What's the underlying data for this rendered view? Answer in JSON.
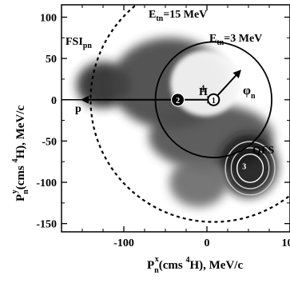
{
  "chart_data": {
    "type": "heatmap",
    "title": "",
    "xlabel": {
      "main": "P",
      "sub": "n",
      "sup": "x",
      "rest": "(cms ",
      "sup2": "4",
      "rest2": "H), MeV/c"
    },
    "ylabel": {
      "main": "P",
      "sub": "n",
      "sup": "y",
      "rest": "(cms ",
      "sup2": "4",
      "rest2": "H), MeV/c"
    },
    "xlim": [
      -175,
      100
    ],
    "ylim": [
      -160,
      115
    ],
    "xticks": [
      -100,
      0,
      100
    ],
    "xtick_labels": [
      "-100",
      "0",
      "100"
    ],
    "yticks": [
      100,
      50,
      0,
      -50,
      -100,
      -150
    ],
    "ytick_labels": [
      "100",
      "50",
      "0",
      "-50",
      "-100",
      "-150"
    ],
    "colors": {
      "density_dark": "#0a0a0a",
      "density_mid": "#4a4a4a",
      "density_light": "#9a9a9a",
      "background": "#ffffff"
    },
    "density_regions": [
      {
        "name": "FSI region",
        "cx": -125,
        "cy": 18,
        "rx": 32,
        "ry": 28,
        "level": 0.85
      },
      {
        "name": "central band",
        "cx": -45,
        "cy": 20,
        "rx": 70,
        "ry": 55,
        "level": 0.7
      },
      {
        "name": "lower band",
        "cx": 5,
        "cy": -45,
        "rx": 75,
        "ry": 40,
        "level": 0.65
      },
      {
        "name": "QFS core",
        "cx": 50,
        "cy": -80,
        "rx": 35,
        "ry": 38,
        "level": 0.95
      },
      {
        "name": "lower tail",
        "cx": -10,
        "cy": -100,
        "rx": 35,
        "ry": 30,
        "level": 0.5
      }
    ],
    "curves": [
      {
        "name": "E_tn = 15 MeV kinematic locus",
        "style": "dashed",
        "cx": 8,
        "cy": 0,
        "r": 148,
        "from_deg": 100,
        "to_deg": 340
      },
      {
        "name": "E_tn = 3 MeV circle",
        "style": "solid",
        "cx": 8,
        "cy": 0,
        "r": 70
      }
    ],
    "markers": [
      {
        "id": "H",
        "x": 8,
        "y": 0,
        "label": "H"
      },
      {
        "id": "2",
        "x": -35,
        "y": 0,
        "label": "2"
      },
      {
        "id": "3",
        "x": 45,
        "y": -80,
        "label": "3"
      },
      {
        "id": "4",
        "x": -5,
        "y": 15,
        "label": "4"
      }
    ],
    "vectors": [
      {
        "name": "p",
        "from": [
          -35,
          0
        ],
        "to": [
          -150,
          0
        ],
        "label": "p"
      },
      {
        "name": "H",
        "from": [
          -35,
          0
        ],
        "to": [
          8,
          0
        ],
        "label": "H"
      },
      {
        "name": "n",
        "from": [
          8,
          0
        ],
        "to": [
          40,
          35
        ],
        "label": "φn"
      }
    ],
    "annotations": [
      {
        "id": "e15",
        "text": "E",
        "sub": "tn",
        "rest": "=15 MeV"
      },
      {
        "id": "e3",
        "text": "E",
        "sub": "tn",
        "rest": "=3 MeV"
      },
      {
        "id": "fsi",
        "text": "FSI",
        "sub": "pn"
      },
      {
        "id": "qfs",
        "text": "QFS"
      },
      {
        "id": "phi",
        "text": "φ",
        "sub": "n"
      },
      {
        "id": "p",
        "text": "p"
      }
    ],
    "grid": false
  }
}
